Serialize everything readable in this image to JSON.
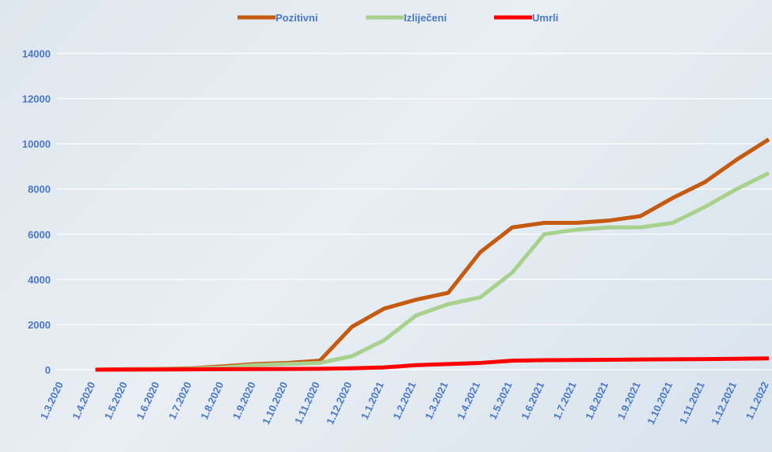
{
  "chart_data": {
    "type": "line",
    "categories": [
      "1.3.2020",
      "1.4.2020",
      "1.5.2020",
      "1.6.2020",
      "1.7.2020",
      "1.8.2020",
      "1.9.2020",
      "1.10.2020",
      "1.11.2020",
      "1.12.2020",
      "1.1.2021",
      "1.2.2021",
      "1.3.2021",
      "1.4.2021",
      "1.5.2021",
      "1.6.2021",
      "1.7.2021",
      "1.8.2021",
      "1.9.2021",
      "1.10.2021",
      "1.11.2021",
      "1.12.2021",
      "1.1.2022"
    ],
    "series": [
      {
        "name": "Pozitivni",
        "color": "#c55a11",
        "values": [
          null,
          0,
          20,
          30,
          60,
          150,
          250,
          300,
          400,
          1900,
          2700,
          3100,
          3400,
          5200,
          6300,
          6500,
          6500,
          6600,
          6800,
          7600,
          8300,
          9300,
          10200
        ]
      },
      {
        "name": "Izliječeni",
        "color": "#a9d18e",
        "values": [
          null,
          0,
          10,
          20,
          40,
          100,
          200,
          250,
          300,
          600,
          1300,
          2400,
          2900,
          3200,
          4300,
          6000,
          6200,
          6300,
          6300,
          6500,
          7200,
          8000,
          8700
        ]
      },
      {
        "name": "Umrli",
        "color": "#ff0000",
        "values": [
          null,
          0,
          5,
          10,
          15,
          20,
          25,
          30,
          40,
          60,
          100,
          200,
          250,
          300,
          400,
          420,
          430,
          440,
          450,
          460,
          470,
          480,
          500
        ]
      }
    ],
    "ylim": [
      0,
      15000
    ],
    "yticks": [
      0,
      2000,
      4000,
      6000,
      8000,
      10000,
      12000,
      14000
    ],
    "grid": true,
    "legend": "top"
  }
}
